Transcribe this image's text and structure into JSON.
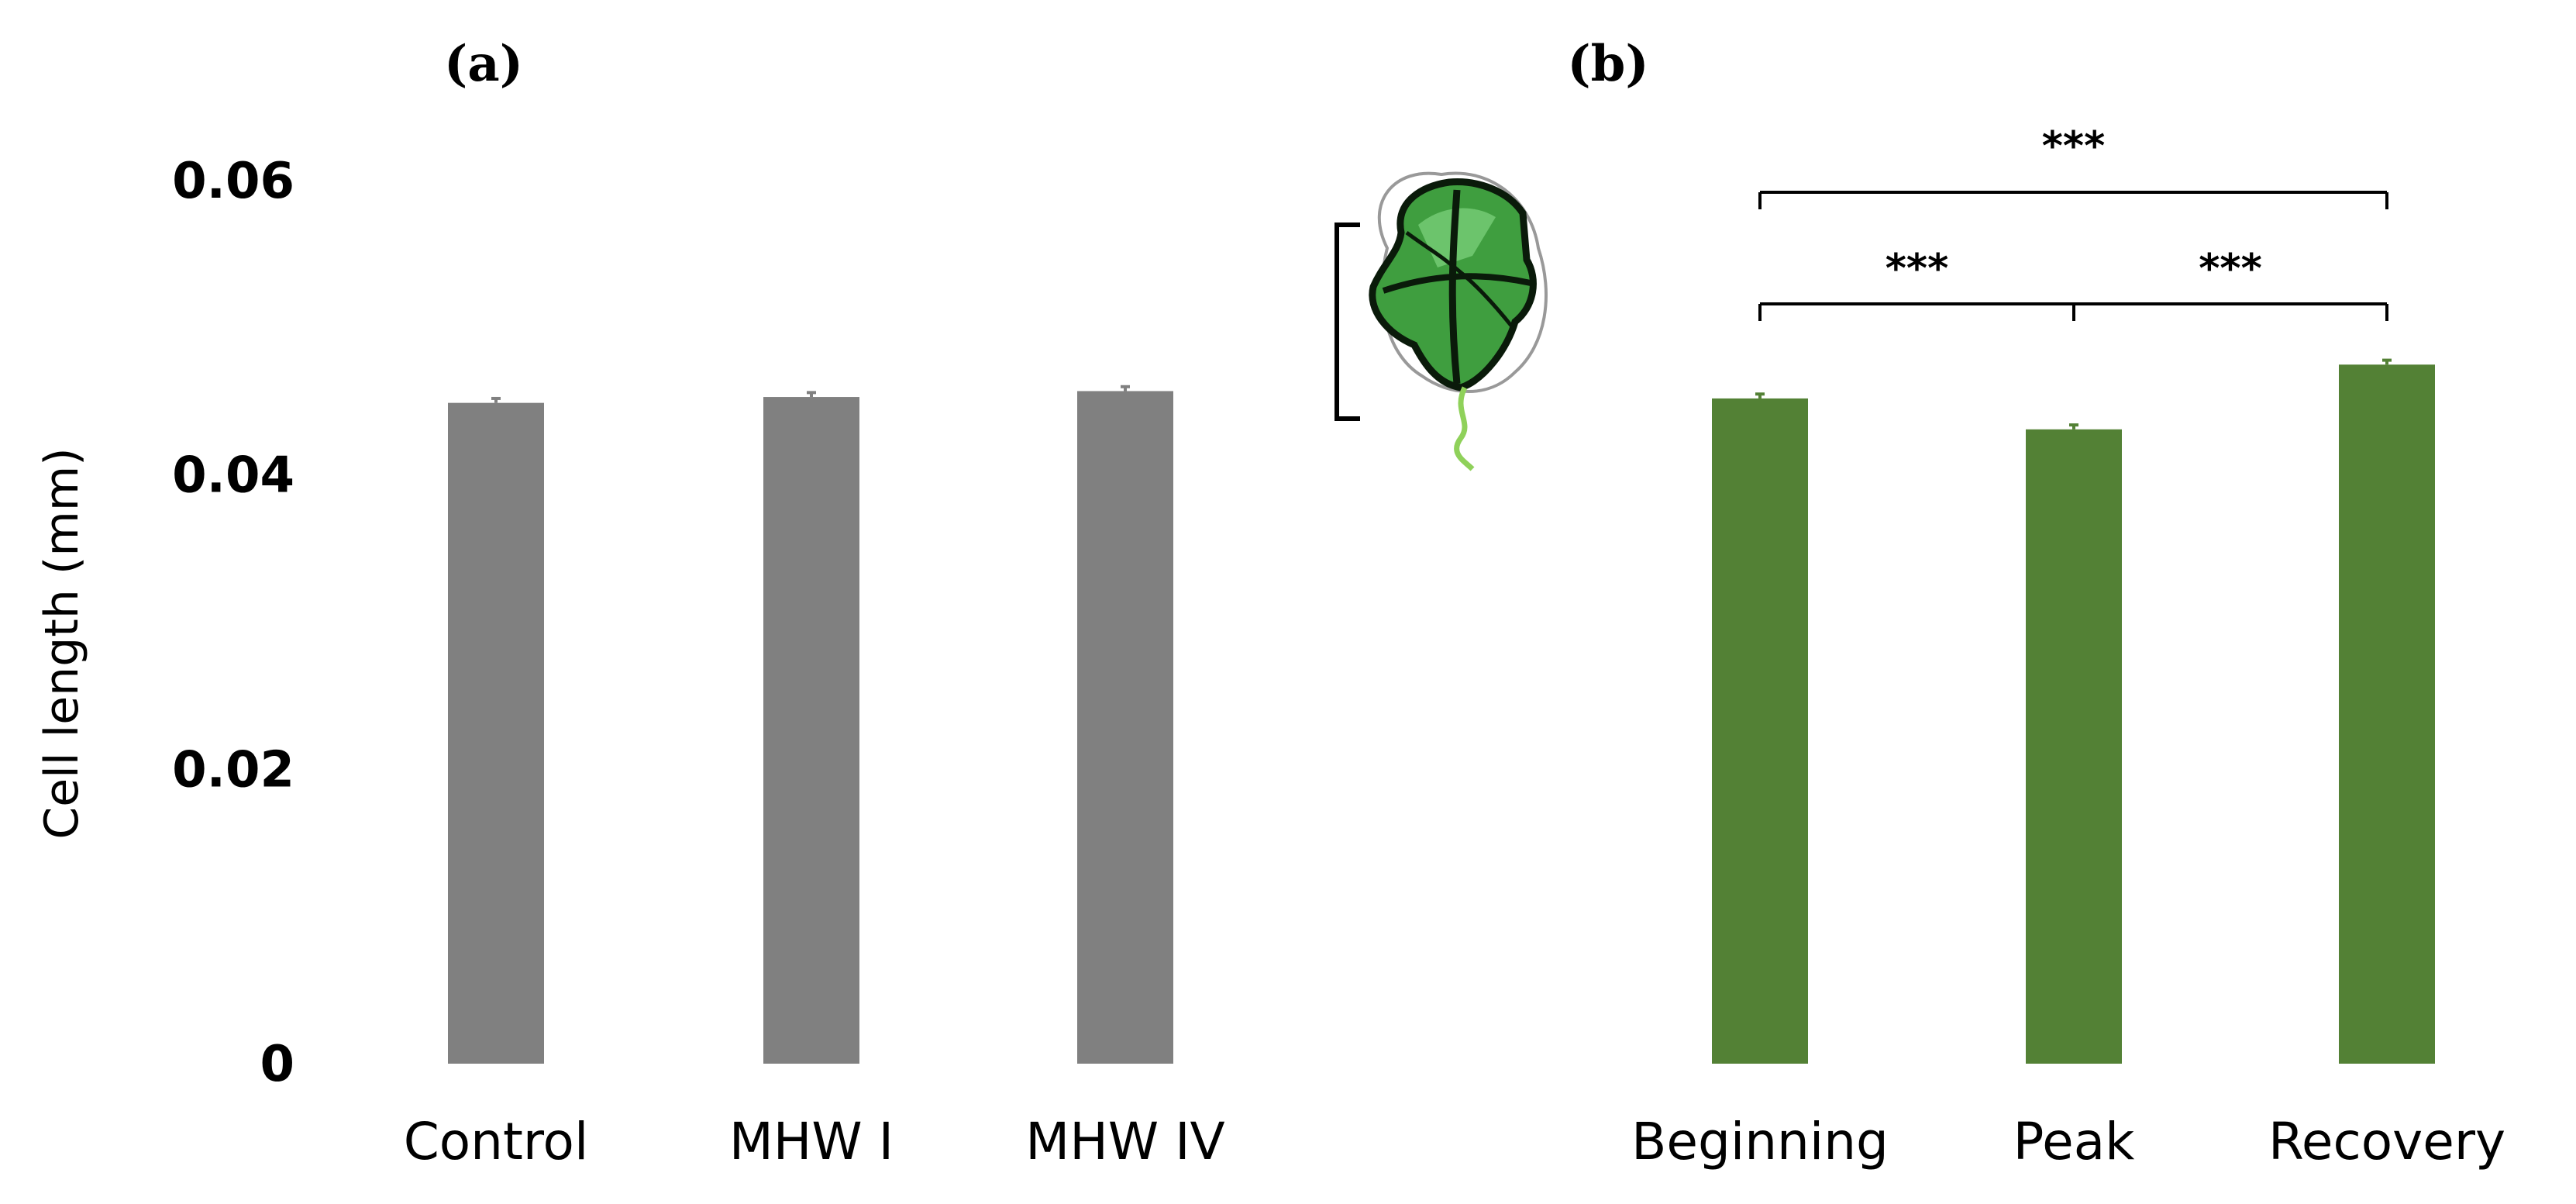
{
  "chart_data": [
    {
      "panel": "(a)",
      "type": "bar",
      "ylabel": "Cell length (mm)",
      "ylim": [
        0,
        0.06
      ],
      "yticks": [
        0,
        0.02,
        0.04,
        0.06
      ],
      "ytick_labels": [
        "0",
        "0.02",
        "0.04",
        "0.06"
      ],
      "categories": [
        "Control",
        "MHW I",
        "MHW IV"
      ],
      "values": [
        0.0449,
        0.0453,
        0.0457
      ],
      "errors": [
        0.0003,
        0.0003,
        0.0003
      ],
      "color": "#808080",
      "grid": false
    },
    {
      "panel": "(b)",
      "type": "bar",
      "ylim": [
        0,
        0.06
      ],
      "categories": [
        "Beginning",
        "Peak",
        "Recovery"
      ],
      "values": [
        0.0452,
        0.0431,
        0.0475
      ],
      "errors": [
        0.0003,
        0.0003,
        0.0003
      ],
      "color": "#538135",
      "grid": false,
      "significance": [
        {
          "from": 0,
          "to": 1,
          "label": "***"
        },
        {
          "from": 1,
          "to": 2,
          "label": "***"
        },
        {
          "from": 0,
          "to": 2,
          "label": "***"
        }
      ]
    }
  ],
  "illustration": {
    "icon": "green-algal-cell-icon",
    "cell_fill": "#3f9e3f",
    "flagellum_color": "#8fd15a"
  }
}
